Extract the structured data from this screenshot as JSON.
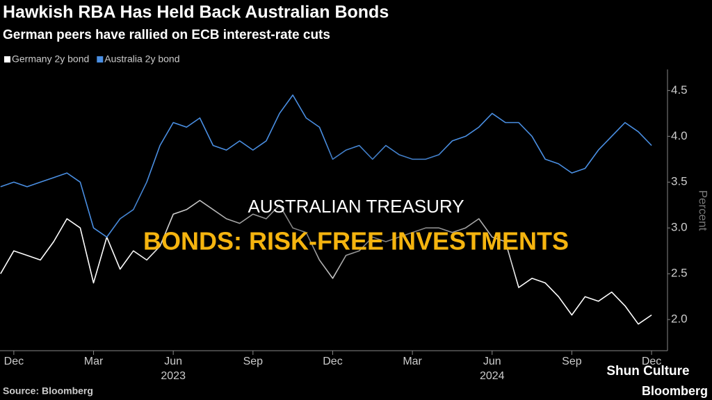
{
  "chart_data": {
    "type": "line",
    "title": "Hawkish RBA Has Held Back Australian Bonds",
    "subtitle": "German peers have rallied on ECB interest-rate cuts",
    "y_label": "Percent",
    "source": "Source: Bloomberg",
    "brand": "Bloomberg",
    "x": [
      -0.5,
      0,
      0.5,
      1,
      1.5,
      2,
      2.5,
      3,
      3.5,
      4,
      4.5,
      5,
      5.5,
      6,
      6.5,
      7,
      7.5,
      8,
      8.5,
      9,
      9.5,
      10,
      10.5,
      11,
      11.5,
      12,
      12.5,
      13,
      13.5,
      14,
      14.5,
      15,
      15.5,
      16,
      16.5,
      17,
      17.5,
      18,
      18.5,
      19,
      19.5,
      20,
      20.5,
      21,
      21.5,
      22,
      22.5,
      23,
      23.5,
      24
    ],
    "series": [
      {
        "name": "Germany 2y bond",
        "color": "#ffffff",
        "values": [
          2.5,
          2.75,
          2.7,
          2.65,
          2.85,
          3.1,
          3.0,
          2.4,
          2.9,
          2.55,
          2.75,
          2.65,
          2.8,
          3.15,
          3.2,
          3.3,
          3.2,
          3.1,
          3.05,
          3.15,
          3.1,
          3.25,
          3.0,
          2.95,
          2.65,
          2.45,
          2.7,
          2.75,
          2.9,
          2.85,
          2.9,
          2.95,
          3.0,
          3.0,
          2.95,
          3.0,
          3.1,
          2.9,
          2.85,
          2.35,
          2.45,
          2.4,
          2.25,
          2.05,
          2.25,
          2.2,
          2.3,
          2.15,
          1.95,
          2.05
        ]
      },
      {
        "name": "Australia 2y bond",
        "color": "#4a8fe3",
        "values": [
          3.45,
          3.5,
          3.45,
          3.5,
          3.55,
          3.6,
          3.5,
          3.0,
          2.9,
          3.1,
          3.2,
          3.5,
          3.9,
          4.15,
          4.1,
          4.2,
          3.9,
          3.85,
          3.95,
          3.85,
          3.95,
          4.25,
          4.45,
          4.2,
          4.1,
          3.75,
          3.85,
          3.9,
          3.75,
          3.9,
          3.8,
          3.75,
          3.75,
          3.8,
          3.95,
          4.0,
          4.1,
          4.25,
          4.15,
          4.15,
          4.0,
          3.75,
          3.7,
          3.6,
          3.65,
          3.85,
          4.0,
          4.15,
          4.05,
          3.9
        ]
      }
    ],
    "xlim": [
      -0.52,
      24.6
    ],
    "xticks": [
      {
        "value": 0,
        "label": "Dec"
      },
      {
        "value": 3,
        "label": "Mar"
      },
      {
        "value": 6,
        "label": "Jun"
      },
      {
        "value": 9,
        "label": "Sep"
      },
      {
        "value": 12,
        "label": "Dec"
      },
      {
        "value": 15,
        "label": "Mar"
      },
      {
        "value": 18,
        "label": "Jun"
      },
      {
        "value": 21,
        "label": "Sep"
      },
      {
        "value": 24,
        "label": "Dec"
      }
    ],
    "x_year_labels": [
      {
        "value": 6,
        "label": "2023"
      },
      {
        "value": 18,
        "label": "2024"
      }
    ],
    "ylim": [
      1.66,
      4.73
    ],
    "yticks": [
      {
        "value": 2,
        "label": "2.0"
      },
      2.5,
      {
        "value": 3,
        "label": "3.0"
      },
      3.5,
      {
        "value": 4,
        "label": "4.0"
      },
      4.5
    ],
    "grid": false
  },
  "overlay": {
    "line1": "AUSTRALIAN TREASURY",
    "line2": "BONDS: RISK-FREE INVESTMENTS",
    "watermark": "Shun Culture"
  }
}
